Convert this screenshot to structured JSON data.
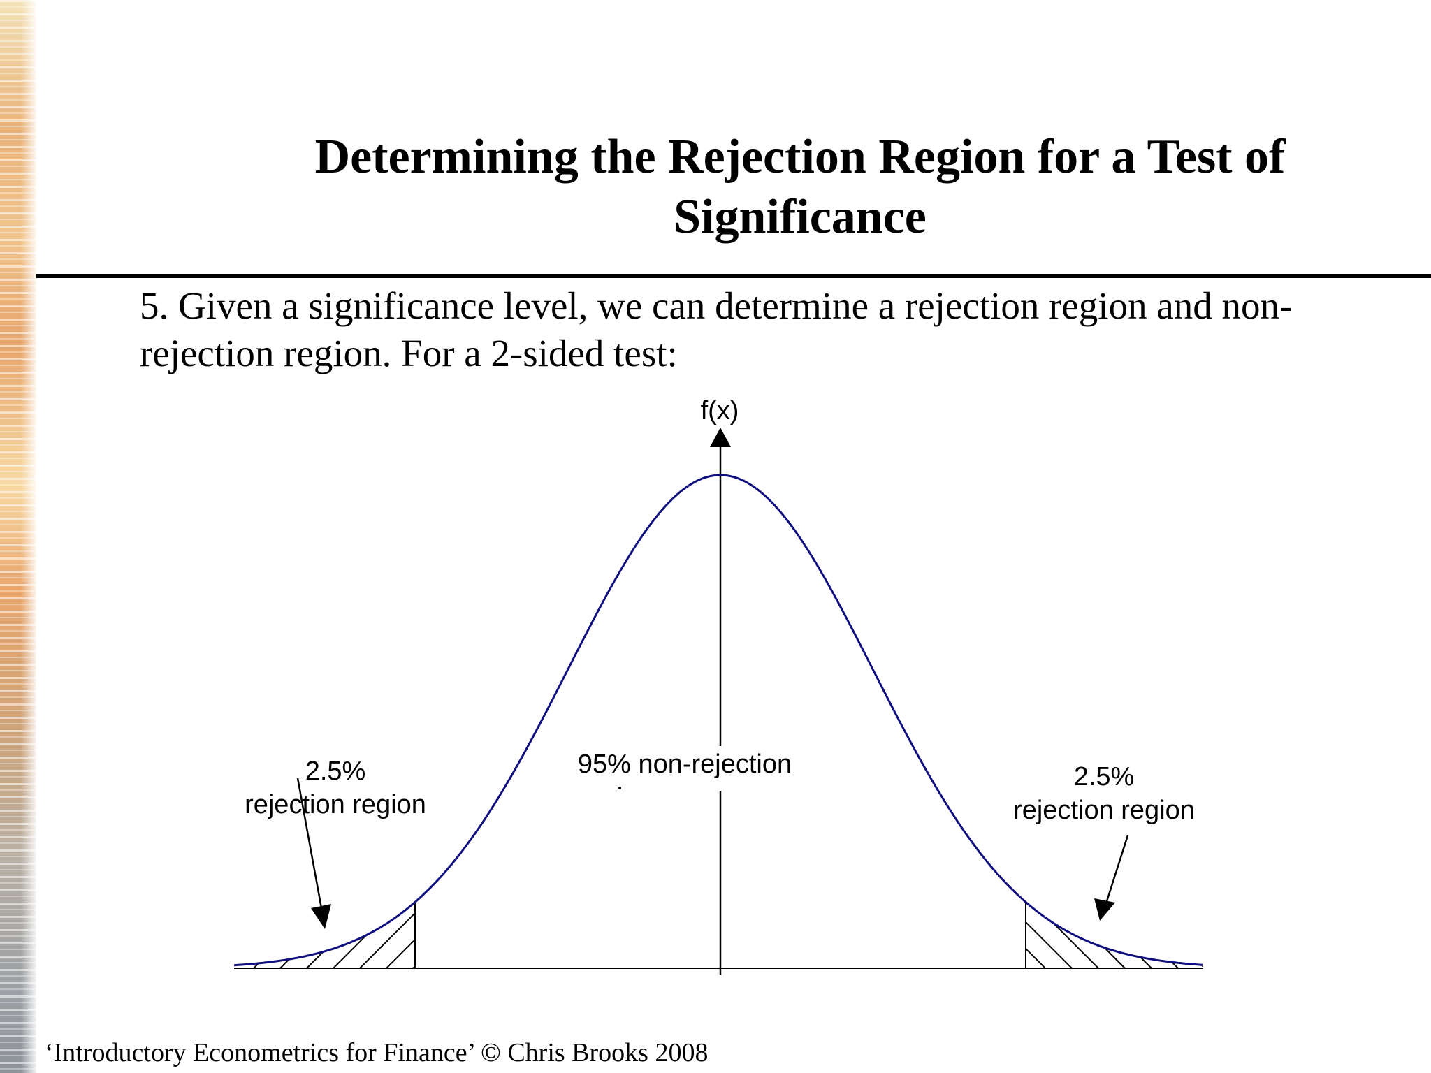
{
  "slide": {
    "title_line1": "Determining the Rejection Region for a Test of",
    "title_line2": "Significance",
    "body_line1": "5. Given a significance level, we can determine a rejection region and non-",
    "body_line2": "rejection region. For a 2-sided test:",
    "footer": "‘Introductory Econometrics for Finance’ © Chris Brooks 2008"
  },
  "diagram": {
    "y_axis_label": "f(x)",
    "center_label": "95% non-rejection",
    "left_region": {
      "percent": "2.5%",
      "label": "rejection region"
    },
    "right_region": {
      "percent": "2.5%",
      "label": "rejection region"
    },
    "curve_color": "#0f0f80",
    "line_color": "#000000"
  }
}
